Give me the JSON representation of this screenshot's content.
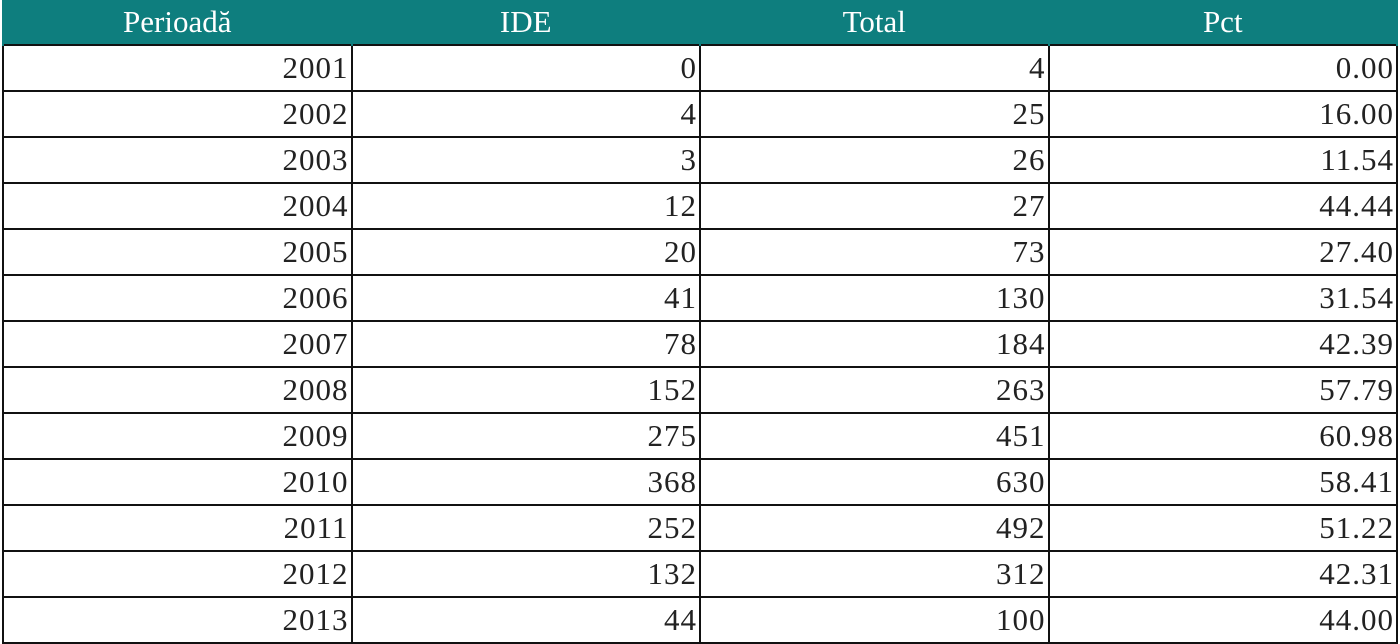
{
  "table": {
    "header": [
      "Perioadă",
      "IDE",
      "Total",
      "Pct"
    ],
    "rows": [
      [
        "2001",
        "0",
        "4",
        "0.00"
      ],
      [
        "2002",
        "4",
        "25",
        "16.00"
      ],
      [
        "2003",
        "3",
        "26",
        "11.54"
      ],
      [
        "2004",
        "12",
        "27",
        "44.44"
      ],
      [
        "2005",
        "20",
        "73",
        "27.40"
      ],
      [
        "2006",
        "41",
        "130",
        "31.54"
      ],
      [
        "2007",
        "78",
        "184",
        "42.39"
      ],
      [
        "2008",
        "152",
        "263",
        "57.79"
      ],
      [
        "2009",
        "275",
        "451",
        "60.98"
      ],
      [
        "2010",
        "368",
        "630",
        "58.41"
      ],
      [
        "2011",
        "252",
        "492",
        "51.22"
      ],
      [
        "2012",
        "132",
        "312",
        "42.31"
      ],
      [
        "2013",
        "44",
        "100",
        "44.00"
      ]
    ]
  }
}
